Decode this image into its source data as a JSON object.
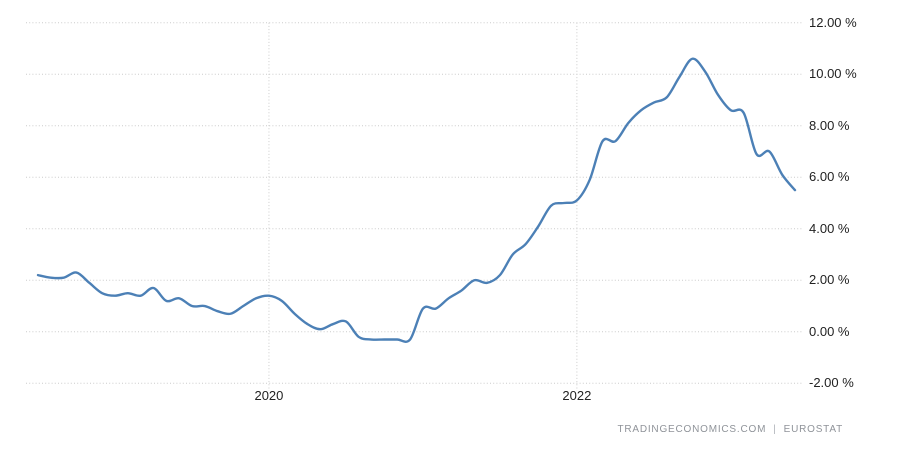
{
  "watermark": {
    "brand": "TRADINGECONOMICS.COM",
    "separator": "|",
    "provider": "EUROSTAT"
  },
  "chart_data": {
    "type": "line",
    "title": "",
    "xlabel": "",
    "ylabel": "",
    "unit": "%",
    "line_color": "#4c80b6",
    "grid_color": "#cccccc",
    "tick_text_color": "#222222",
    "background_color": "#ffffff",
    "ylim": [
      -2,
      12
    ],
    "ytick_step": 2,
    "grid": true,
    "legend": "none",
    "y_ticks": [
      {
        "value": 12,
        "label": "12.00 %"
      },
      {
        "value": 10,
        "label": "10.00 %"
      },
      {
        "value": 8,
        "label": "8.00 %"
      },
      {
        "value": 6,
        "label": "6.00 %"
      },
      {
        "value": 4,
        "label": "4.00 %"
      },
      {
        "value": 2,
        "label": "2.00 %"
      },
      {
        "value": 0,
        "label": "0.00 %"
      },
      {
        "value": -2,
        "label": "-2.00 %"
      }
    ],
    "x_ticks": [
      {
        "index": 18,
        "label": "2020"
      },
      {
        "index": 42,
        "label": "2022"
      }
    ],
    "x": [
      "2018-07",
      "2018-08",
      "2018-09",
      "2018-10",
      "2018-11",
      "2018-12",
      "2019-01",
      "2019-02",
      "2019-03",
      "2019-04",
      "2019-05",
      "2019-06",
      "2019-07",
      "2019-08",
      "2019-09",
      "2019-10",
      "2019-11",
      "2019-12",
      "2020-01",
      "2020-02",
      "2020-03",
      "2020-04",
      "2020-05",
      "2020-06",
      "2020-07",
      "2020-08",
      "2020-09",
      "2020-10",
      "2020-11",
      "2020-12",
      "2021-01",
      "2021-02",
      "2021-03",
      "2021-04",
      "2021-05",
      "2021-06",
      "2021-07",
      "2021-08",
      "2021-09",
      "2021-10",
      "2021-11",
      "2021-12",
      "2022-01",
      "2022-02",
      "2022-03",
      "2022-04",
      "2022-05",
      "2022-06",
      "2022-07",
      "2022-08",
      "2022-09",
      "2022-10",
      "2022-11",
      "2022-12",
      "2023-01",
      "2023-02",
      "2023-03",
      "2023-04",
      "2023-05",
      "2023-06"
    ],
    "values": [
      2.2,
      2.1,
      2.1,
      2.3,
      1.9,
      1.5,
      1.4,
      1.5,
      1.4,
      1.7,
      1.2,
      1.3,
      1.0,
      1.0,
      0.8,
      0.7,
      1.0,
      1.3,
      1.4,
      1.2,
      0.7,
      0.3,
      0.1,
      0.3,
      0.4,
      -0.2,
      -0.3,
      -0.3,
      -0.3,
      -0.3,
      0.9,
      0.9,
      1.3,
      1.6,
      2.0,
      1.9,
      2.2,
      3.0,
      3.4,
      4.1,
      4.9,
      5.0,
      5.1,
      5.9,
      7.4,
      7.4,
      8.1,
      8.6,
      8.9,
      9.1,
      9.9,
      10.6,
      10.1,
      9.2,
      8.6,
      8.5,
      6.9,
      7.0,
      6.1,
      5.5
    ]
  }
}
